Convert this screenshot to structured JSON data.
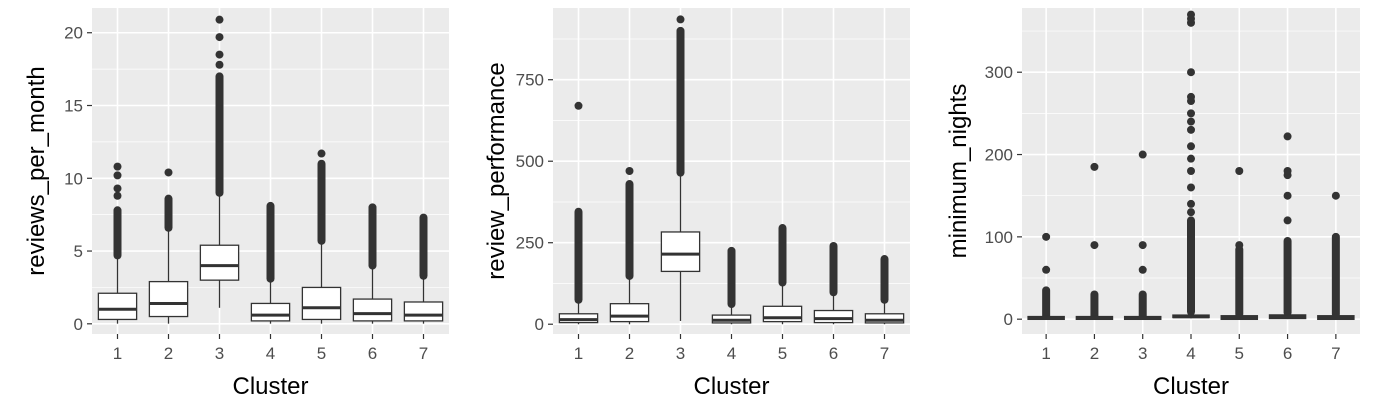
{
  "chart_data": [
    {
      "type": "boxplot",
      "xlabel": "Cluster",
      "ylabel": "reviews_per_month",
      "categories": [
        "1",
        "2",
        "3",
        "4",
        "5",
        "6",
        "7"
      ],
      "ylim": [
        -0.7,
        21.7
      ],
      "yticks": [
        0,
        5,
        10,
        15,
        20
      ],
      "grid": true,
      "boxes": [
        {
          "q1": 0.3,
          "median": 1.0,
          "q3": 2.1,
          "whisker_low": 0.01,
          "whisker_high": 4.6,
          "outliers_dense": [
            4.7,
            7.8
          ],
          "outliers": [
            8.8,
            9.3,
            10.2,
            10.8
          ]
        },
        {
          "q1": 0.5,
          "median": 1.4,
          "q3": 2.9,
          "whisker_low": 0.01,
          "whisker_high": 6.5,
          "outliers_dense": [
            6.6,
            8.6
          ],
          "outliers": [
            10.4
          ]
        },
        {
          "q1": 3.0,
          "median": 4.0,
          "q3": 5.4,
          "whisker_low": 1.1,
          "whisker_high": 8.9,
          "outliers_dense": [
            9.0,
            17.0
          ],
          "outliers": [
            17.8,
            18.5,
            19.7,
            20.9
          ]
        },
        {
          "q1": 0.2,
          "median": 0.6,
          "q3": 1.4,
          "whisker_low": 0.01,
          "whisker_high": 3.0,
          "outliers_dense": [
            3.1,
            8.1
          ],
          "outliers": []
        },
        {
          "q1": 0.3,
          "median": 1.1,
          "q3": 2.5,
          "whisker_low": 0.01,
          "whisker_high": 5.6,
          "outliers_dense": [
            5.7,
            11.0
          ],
          "outliers": [
            11.7
          ]
        },
        {
          "q1": 0.2,
          "median": 0.7,
          "q3": 1.7,
          "whisker_low": 0.01,
          "whisker_high": 3.9,
          "outliers_dense": [
            4.0,
            8.0
          ],
          "outliers": []
        },
        {
          "q1": 0.2,
          "median": 0.6,
          "q3": 1.5,
          "whisker_low": 0.01,
          "whisker_high": 3.2,
          "outliers_dense": [
            3.3,
            7.3
          ],
          "outliers": []
        }
      ]
    },
    {
      "type": "boxplot",
      "xlabel": "Cluster",
      "ylabel": "review_performance",
      "categories": [
        "1",
        "2",
        "3",
        "4",
        "5",
        "6",
        "7"
      ],
      "ylim": [
        -30,
        970
      ],
      "yticks": [
        0,
        250,
        500,
        750
      ],
      "grid": true,
      "boxes": [
        {
          "q1": 5,
          "median": 14,
          "q3": 32,
          "whisker_low": 0,
          "whisker_high": 72,
          "outliers_dense": [
            75,
            345
          ],
          "outliers": [
            670
          ]
        },
        {
          "q1": 8,
          "median": 25,
          "q3": 63,
          "whisker_low": 0,
          "whisker_high": 145,
          "outliers_dense": [
            148,
            430
          ],
          "outliers": [
            470
          ]
        },
        {
          "q1": 162,
          "median": 215,
          "q3": 283,
          "whisker_low": 10,
          "whisker_high": 460,
          "outliers_dense": [
            465,
            900
          ],
          "outliers": [
            935
          ]
        },
        {
          "q1": 4,
          "median": 12,
          "q3": 28,
          "whisker_low": 0,
          "whisker_high": 60,
          "outliers_dense": [
            62,
            225
          ],
          "outliers": []
        },
        {
          "q1": 8,
          "median": 20,
          "q3": 55,
          "whisker_low": 0,
          "whisker_high": 125,
          "outliers_dense": [
            128,
            295
          ],
          "outliers": []
        },
        {
          "q1": 5,
          "median": 17,
          "q3": 42,
          "whisker_low": 0,
          "whisker_high": 95,
          "outliers_dense": [
            98,
            240
          ],
          "outliers": []
        },
        {
          "q1": 4,
          "median": 12,
          "q3": 32,
          "whisker_low": 0,
          "whisker_high": 72,
          "outliers_dense": [
            75,
            200
          ],
          "outliers": []
        }
      ]
    },
    {
      "type": "boxplot",
      "xlabel": "Cluster",
      "ylabel": "minimum_nights",
      "categories": [
        "1",
        "2",
        "3",
        "4",
        "5",
        "6",
        "7"
      ],
      "ylim": [
        -18,
        378
      ],
      "yticks": [
        0,
        100,
        200,
        300
      ],
      "grid": true,
      "boxes": [
        {
          "q1": 1,
          "median": 1,
          "q3": 2,
          "whisker_low": 1,
          "whisker_high": 3,
          "outliers_dense": [
            4,
            35
          ],
          "outliers": [
            60,
            100
          ]
        },
        {
          "q1": 1,
          "median": 1,
          "q3": 2,
          "whisker_low": 1,
          "whisker_high": 3,
          "outliers_dense": [
            4,
            30
          ],
          "outliers": [
            90,
            185
          ]
        },
        {
          "q1": 1,
          "median": 1,
          "q3": 2,
          "whisker_low": 1,
          "whisker_high": 3,
          "outliers_dense": [
            4,
            30
          ],
          "outliers": [
            60,
            90,
            200
          ]
        },
        {
          "q1": 2,
          "median": 3,
          "q3": 5,
          "whisker_low": 1,
          "whisker_high": 8,
          "outliers_dense": [
            9,
            120
          ],
          "outliers": [
            130,
            140,
            160,
            180,
            195,
            210,
            230,
            240,
            250,
            265,
            270,
            300,
            360,
            365,
            370
          ]
        },
        {
          "q1": 1,
          "median": 2,
          "q3": 3,
          "whisker_low": 1,
          "whisker_high": 5,
          "outliers_dense": [
            6,
            85
          ],
          "outliers": [
            90,
            180
          ]
        },
        {
          "q1": 2,
          "median": 3,
          "q3": 4,
          "whisker_low": 1,
          "whisker_high": 7,
          "outliers_dense": [
            8,
            95
          ],
          "outliers": [
            120,
            150,
            175,
            180,
            222
          ]
        },
        {
          "q1": 1,
          "median": 2,
          "q3": 3,
          "whisker_low": 1,
          "whisker_high": 5,
          "outliers_dense": [
            6,
            100
          ],
          "outliers": [
            150
          ]
        }
      ]
    }
  ],
  "colors": {
    "panel_bg": "#ebebeb",
    "grid": "#ffffff",
    "box_fill": "#ffffff",
    "box_stroke": "#333333",
    "outlier": "#333333",
    "tick_text": "#4d4d4d",
    "tick_mark": "#333333"
  }
}
